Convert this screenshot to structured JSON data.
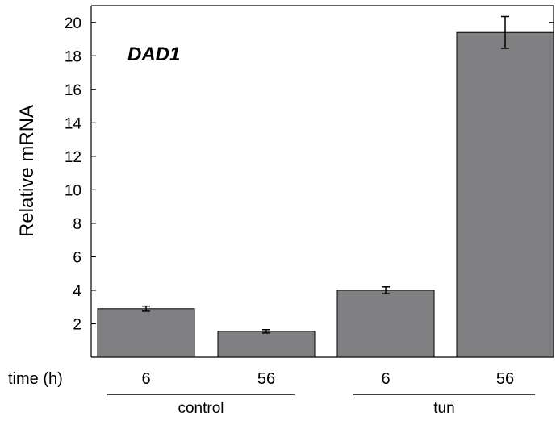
{
  "chart_data": {
    "type": "bar",
    "title": "DAD1",
    "ylabel": "Relative mRNA",
    "ylim": [
      0,
      21
    ],
    "yticks": [
      2,
      4,
      6,
      8,
      10,
      12,
      14,
      16,
      18,
      20
    ],
    "x_row_label": "time (h)",
    "categories": [
      "6",
      "56",
      "6",
      "56"
    ],
    "groups": [
      {
        "label": "control",
        "members": [
          0,
          1
        ]
      },
      {
        "label": "tun",
        "members": [
          2,
          3
        ]
      }
    ],
    "values": [
      2.9,
      1.55,
      4.0,
      19.4
    ],
    "errors": [
      0.15,
      0.1,
      0.2,
      0.95
    ],
    "bar_color": "#808083",
    "grid": false
  }
}
